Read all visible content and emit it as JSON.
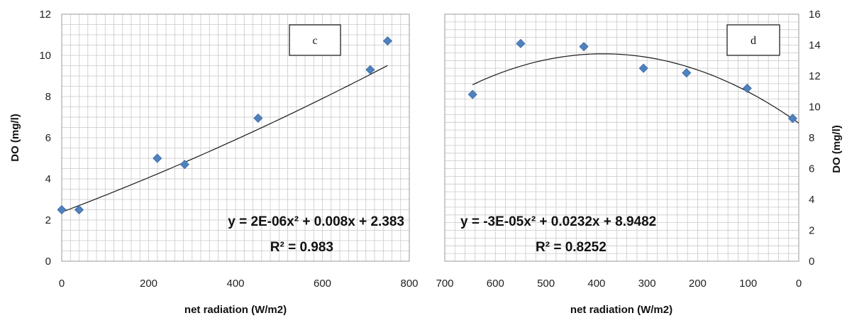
{
  "chart_data": [
    {
      "type": "scatter",
      "panel_label": "c",
      "xlabel": "net radiation (W/m2)",
      "ylabel": "DO (mg/l)",
      "xlim": [
        0,
        800
      ],
      "ylim": [
        0,
        12
      ],
      "x_ticks": [
        "0",
        "200",
        "400",
        "600",
        "800"
      ],
      "y_ticks": [
        "0",
        "2",
        "4",
        "6",
        "8",
        "10",
        "12"
      ],
      "x_reversed": false,
      "y_axis_side": "left",
      "grid": true,
      "marker_color": "#4f81bd",
      "points": [
        {
          "x": 0,
          "y": 2.5
        },
        {
          "x": 40,
          "y": 2.5
        },
        {
          "x": 220,
          "y": 5.0
        },
        {
          "x": 283,
          "y": 4.7
        },
        {
          "x": 452,
          "y": 6.95
        },
        {
          "x": 710,
          "y": 9.3
        },
        {
          "x": 750,
          "y": 10.7
        }
      ],
      "trendline": {
        "type": "polynomial",
        "coefficients": [
          2e-06,
          0.008,
          2.383
        ],
        "x_range": [
          0,
          750
        ]
      },
      "equation": "y = 2E-06x² + 0.008x + 2.383",
      "r_squared": "R² = 0.983"
    },
    {
      "type": "scatter",
      "panel_label": "d",
      "xlabel": "net radiation (W/m2)",
      "ylabel": "DO (mg/l)",
      "xlim": [
        0,
        700
      ],
      "ylim": [
        0,
        16
      ],
      "x_ticks": [
        "700",
        "600",
        "500",
        "400",
        "300",
        "200",
        "100",
        "0"
      ],
      "y_ticks": [
        "0",
        "2",
        "4",
        "6",
        "8",
        "10",
        "12",
        "14",
        "16"
      ],
      "x_reversed": true,
      "y_axis_side": "right",
      "grid": true,
      "marker_color": "#4f81bd",
      "points": [
        {
          "x": 645,
          "y": 10.8
        },
        {
          "x": 550,
          "y": 14.1
        },
        {
          "x": 425,
          "y": 13.9
        },
        {
          "x": 307,
          "y": 12.5
        },
        {
          "x": 222,
          "y": 12.2
        },
        {
          "x": 102,
          "y": 11.2
        },
        {
          "x": 12,
          "y": 9.25
        }
      ],
      "trendline": {
        "type": "polynomial",
        "coefficients": [
          -3e-05,
          0.0232,
          8.9482
        ],
        "x_range": [
          0,
          645
        ]
      },
      "equation": "y = -3E-05x² + 0.0232x + 8.9482",
      "r_squared": "R² = 0.8252"
    }
  ]
}
